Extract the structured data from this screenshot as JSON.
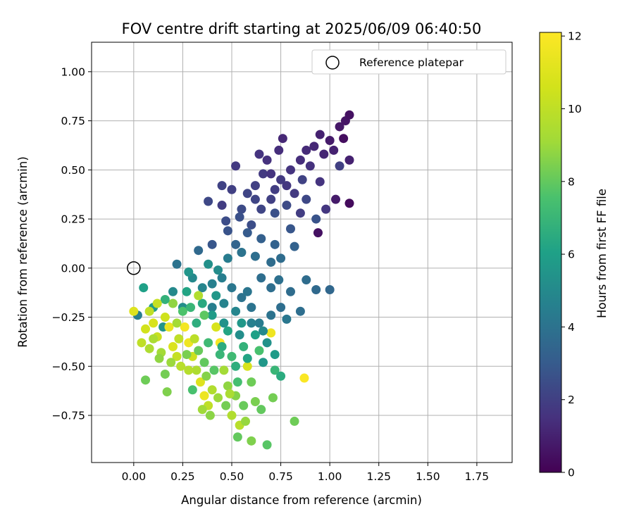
{
  "chart_data": {
    "type": "scatter",
    "title": "FOV centre drift starting at 2025/06/09 06:40:50",
    "xlabel": "Angular distance from reference (arcmin)",
    "ylabel": "Rotation from reference (arcmin)",
    "xlim": [
      -0.215,
      1.93
    ],
    "ylim": [
      -0.99,
      1.15
    ],
    "x_ticks": [
      "0.00",
      "0.25",
      "0.50",
      "0.75",
      "1.00",
      "1.25",
      "1.50",
      "1.75"
    ],
    "y_ticks": [
      "−0.75",
      "−0.50",
      "−0.25",
      "0.00",
      "0.25",
      "0.50",
      "0.75",
      "1.00"
    ],
    "x_tick_values": [
      0,
      0.25,
      0.5,
      0.75,
      1.0,
      1.25,
      1.5,
      1.75
    ],
    "y_tick_values": [
      -0.75,
      -0.5,
      -0.25,
      0,
      0.25,
      0.5,
      0.75,
      1.0
    ],
    "grid": true,
    "legend": {
      "placement": "top-right",
      "entries": [
        "Reference platepar"
      ]
    },
    "reference_point": {
      "x": 0.0,
      "y": 0.0
    },
    "colorbar": {
      "label": "Hours from first FF file",
      "colormap": "viridis",
      "range": [
        0,
        12.1
      ],
      "ticks": [
        "0",
        "2",
        "4",
        "6",
        "8",
        "10",
        "12"
      ],
      "tick_values": [
        0,
        2,
        4,
        6,
        8,
        10,
        12
      ]
    },
    "clusters": [
      {
        "x": 0.05,
        "y": -0.1,
        "t": 6.0
      },
      {
        "x": 0.1,
        "y": -0.2,
        "t": 5.8
      },
      {
        "x": 0.15,
        "y": -0.3,
        "t": 5.5
      },
      {
        "x": 0.2,
        "y": -0.12,
        "t": 5.0
      },
      {
        "x": 0.25,
        "y": -0.2,
        "t": 5.2
      },
      {
        "x": 0.3,
        "y": -0.05,
        "t": 5.0
      },
      {
        "x": 0.35,
        "y": -0.1,
        "t": 4.8
      },
      {
        "x": 0.4,
        "y": -0.2,
        "t": 4.5
      },
      {
        "x": 0.45,
        "y": -0.05,
        "t": 4.5
      },
      {
        "x": 0.5,
        "y": -0.1,
        "t": 4.2
      },
      {
        "x": 0.55,
        "y": -0.15,
        "t": 4.0
      },
      {
        "x": 0.6,
        "y": -0.2,
        "t": 4.0
      },
      {
        "x": 0.65,
        "y": -0.05,
        "t": 3.8
      },
      {
        "x": 0.7,
        "y": -0.1,
        "t": 3.8
      },
      {
        "x": 0.75,
        "y": -0.2,
        "t": 3.8
      },
      {
        "x": 0.8,
        "y": -0.12,
        "t": 3.7
      },
      {
        "x": 0.85,
        "y": -0.22,
        "t": 3.8
      },
      {
        "x": 0.88,
        "y": -0.06,
        "t": 3.7
      },
      {
        "x": 0.93,
        "y": -0.11,
        "t": 3.6
      },
      {
        "x": 1.0,
        "y": -0.11,
        "t": 3.5
      },
      {
        "x": 0.38,
        "y": 0.02,
        "t": 5.3
      },
      {
        "x": 0.43,
        "y": -0.01,
        "t": 5.1
      },
      {
        "x": 0.48,
        "y": 0.05,
        "t": 4.4
      },
      {
        "x": 0.55,
        "y": 0.08,
        "t": 4.0
      },
      {
        "x": 0.62,
        "y": 0.06,
        "t": 3.8
      },
      {
        "x": 0.7,
        "y": 0.03,
        "t": 3.7
      },
      {
        "x": 0.75,
        "y": 0.05,
        "t": 3.7
      },
      {
        "x": 0.33,
        "y": 0.09,
        "t": 3.6
      },
      {
        "x": 0.4,
        "y": 0.12,
        "t": 2.8
      },
      {
        "x": 0.52,
        "y": 0.12,
        "t": 3.4
      },
      {
        "x": 0.65,
        "y": 0.15,
        "t": 3.2
      },
      {
        "x": 0.72,
        "y": 0.12,
        "t": 3.3
      },
      {
        "x": 0.58,
        "y": 0.18,
        "t": 3.0
      },
      {
        "x": 0.82,
        "y": 0.11,
        "t": 3.3
      },
      {
        "x": 0.22,
        "y": 0.02,
        "t": 4.0
      },
      {
        "x": 0.28,
        "y": -0.02,
        "t": 5.5
      },
      {
        "x": 0.02,
        "y": -0.24,
        "t": 4.5
      },
      {
        "x": 0.0,
        "y": -0.22,
        "t": 11.0
      },
      {
        "x": 0.06,
        "y": -0.31,
        "t": 10.6
      },
      {
        "x": 0.1,
        "y": -0.28,
        "t": 10.8
      },
      {
        "x": 0.04,
        "y": -0.38,
        "t": 10.0
      },
      {
        "x": 0.08,
        "y": -0.41,
        "t": 9.5
      },
      {
        "x": 0.12,
        "y": -0.35,
        "t": 10.3
      },
      {
        "x": 0.16,
        "y": -0.25,
        "t": 10.5
      },
      {
        "x": 0.18,
        "y": -0.3,
        "t": 11.4
      },
      {
        "x": 0.2,
        "y": -0.4,
        "t": 10.9
      },
      {
        "x": 0.22,
        "y": -0.45,
        "t": 10.2
      },
      {
        "x": 0.24,
        "y": -0.5,
        "t": 9.8
      },
      {
        "x": 0.26,
        "y": -0.3,
        "t": 11.8
      },
      {
        "x": 0.28,
        "y": -0.38,
        "t": 11.6
      },
      {
        "x": 0.3,
        "y": -0.45,
        "t": 10.4
      },
      {
        "x": 0.32,
        "y": -0.52,
        "t": 9.5
      },
      {
        "x": 0.34,
        "y": -0.58,
        "t": 11.0
      },
      {
        "x": 0.36,
        "y": -0.65,
        "t": 11.5
      },
      {
        "x": 0.38,
        "y": -0.7,
        "t": 10.0
      },
      {
        "x": 0.4,
        "y": -0.62,
        "t": 9.6
      },
      {
        "x": 0.42,
        "y": -0.3,
        "t": 10.8
      },
      {
        "x": 0.44,
        "y": -0.38,
        "t": 11.9
      },
      {
        "x": 0.46,
        "y": -0.52,
        "t": 9.2
      },
      {
        "x": 0.48,
        "y": -0.6,
        "t": 8.8
      },
      {
        "x": 0.5,
        "y": -0.75,
        "t": 9.6
      },
      {
        "x": 0.52,
        "y": -0.65,
        "t": 8.6
      },
      {
        "x": 0.54,
        "y": -0.8,
        "t": 9.8
      },
      {
        "x": 0.58,
        "y": -0.5,
        "t": 10.8
      },
      {
        "x": 0.6,
        "y": -0.58,
        "t": 8.2
      },
      {
        "x": 0.62,
        "y": -0.68,
        "t": 8.4
      },
      {
        "x": 0.65,
        "y": -0.72,
        "t": 8.0
      },
      {
        "x": 0.68,
        "y": -0.9,
        "t": 7.8
      },
      {
        "x": 0.7,
        "y": -0.33,
        "t": 11.6
      },
      {
        "x": 0.72,
        "y": -0.52,
        "t": 7.0
      },
      {
        "x": 0.75,
        "y": -0.55,
        "t": 6.5
      },
      {
        "x": 0.82,
        "y": -0.78,
        "t": 8.2
      },
      {
        "x": 0.87,
        "y": -0.56,
        "t": 12.0
      },
      {
        "x": 0.06,
        "y": -0.57,
        "t": 8.2
      },
      {
        "x": 0.17,
        "y": -0.63,
        "t": 8.5
      },
      {
        "x": 0.16,
        "y": -0.54,
        "t": 8.3
      },
      {
        "x": 0.14,
        "y": -0.43,
        "t": 9.2
      },
      {
        "x": 0.28,
        "y": -0.52,
        "t": 9.7
      },
      {
        "x": 0.3,
        "y": -0.62,
        "t": 7.5
      },
      {
        "x": 0.36,
        "y": -0.48,
        "t": 8.0
      },
      {
        "x": 0.45,
        "y": -0.4,
        "t": 6.5
      },
      {
        "x": 0.5,
        "y": -0.45,
        "t": 7.2
      },
      {
        "x": 0.56,
        "y": -0.4,
        "t": 6.8
      },
      {
        "x": 0.64,
        "y": -0.42,
        "t": 7.5
      },
      {
        "x": 0.48,
        "y": -0.32,
        "t": 6.2
      },
      {
        "x": 0.55,
        "y": -0.28,
        "t": 5.6
      },
      {
        "x": 0.62,
        "y": -0.34,
        "t": 6.0
      },
      {
        "x": 0.68,
        "y": -0.38,
        "t": 5.4
      },
      {
        "x": 0.4,
        "y": -0.24,
        "t": 5.8
      },
      {
        "x": 0.35,
        "y": -0.18,
        "t": 6.4
      },
      {
        "x": 0.25,
        "y": -0.22,
        "t": 7.6
      },
      {
        "x": 0.2,
        "y": -0.18,
        "t": 8.8
      },
      {
        "x": 0.6,
        "y": 0.22,
        "t": 2.5
      },
      {
        "x": 0.65,
        "y": 0.3,
        "t": 2.2
      },
      {
        "x": 0.7,
        "y": 0.35,
        "t": 2.0
      },
      {
        "x": 0.72,
        "y": 0.4,
        "t": 1.9
      },
      {
        "x": 0.75,
        "y": 0.45,
        "t": 1.8
      },
      {
        "x": 0.78,
        "y": 0.42,
        "t": 1.7
      },
      {
        "x": 0.8,
        "y": 0.5,
        "t": 1.6
      },
      {
        "x": 0.82,
        "y": 0.38,
        "t": 1.8
      },
      {
        "x": 0.85,
        "y": 0.55,
        "t": 1.4
      },
      {
        "x": 0.88,
        "y": 0.6,
        "t": 1.3
      },
      {
        "x": 0.9,
        "y": 0.52,
        "t": 1.5
      },
      {
        "x": 0.92,
        "y": 0.62,
        "t": 1.2
      },
      {
        "x": 0.95,
        "y": 0.68,
        "t": 1.0
      },
      {
        "x": 0.97,
        "y": 0.58,
        "t": 1.1
      },
      {
        "x": 1.0,
        "y": 0.65,
        "t": 0.8
      },
      {
        "x": 1.02,
        "y": 0.6,
        "t": 1.0
      },
      {
        "x": 1.05,
        "y": 0.72,
        "t": 0.7
      },
      {
        "x": 1.08,
        "y": 0.75,
        "t": 0.6
      },
      {
        "x": 1.1,
        "y": 0.78,
        "t": 0.5
      },
      {
        "x": 1.07,
        "y": 0.66,
        "t": 0.4
      },
      {
        "x": 1.03,
        "y": 0.35,
        "t": 0.8
      },
      {
        "x": 1.1,
        "y": 0.33,
        "t": 0.3
      },
      {
        "x": 1.1,
        "y": 0.55,
        "t": 1.0
      },
      {
        "x": 1.05,
        "y": 0.52,
        "t": 2.0
      },
      {
        "x": 0.55,
        "y": 0.3,
        "t": 2.4
      },
      {
        "x": 0.58,
        "y": 0.38,
        "t": 2.2
      },
      {
        "x": 0.62,
        "y": 0.42,
        "t": 2.0
      },
      {
        "x": 0.66,
        "y": 0.48,
        "t": 1.8
      },
      {
        "x": 0.64,
        "y": 0.58,
        "t": 1.6
      },
      {
        "x": 0.68,
        "y": 0.55,
        "t": 1.5
      },
      {
        "x": 0.74,
        "y": 0.6,
        "t": 1.4
      },
      {
        "x": 0.76,
        "y": 0.66,
        "t": 1.2
      },
      {
        "x": 0.5,
        "y": 0.4,
        "t": 2.0
      },
      {
        "x": 0.45,
        "y": 0.32,
        "t": 1.9
      },
      {
        "x": 0.45,
        "y": 0.42,
        "t": 2.1
      },
      {
        "x": 0.52,
        "y": 0.52,
        "t": 1.8
      },
      {
        "x": 0.54,
        "y": 0.26,
        "t": 2.6
      },
      {
        "x": 0.38,
        "y": 0.34,
        "t": 2.3
      },
      {
        "x": 0.47,
        "y": 0.24,
        "t": 2.5
      },
      {
        "x": 0.48,
        "y": 0.19,
        "t": 2.7
      },
      {
        "x": 0.86,
        "y": 0.45,
        "t": 2.1
      },
      {
        "x": 0.88,
        "y": 0.35,
        "t": 2.3
      },
      {
        "x": 0.85,
        "y": 0.28,
        "t": 1.9
      },
      {
        "x": 0.94,
        "y": 0.18,
        "t": 0.5
      },
      {
        "x": 0.93,
        "y": 0.25,
        "t": 2.7
      },
      {
        "x": 0.8,
        "y": 0.2,
        "t": 2.8
      },
      {
        "x": 0.98,
        "y": 0.3,
        "t": 1.7
      },
      {
        "x": 0.95,
        "y": 0.44,
        "t": 1.6
      },
      {
        "x": 0.72,
        "y": 0.28,
        "t": 2.6
      },
      {
        "x": 0.62,
        "y": 0.35,
        "t": 2.2
      },
      {
        "x": 0.78,
        "y": 0.32,
        "t": 2.4
      },
      {
        "x": 0.7,
        "y": 0.48,
        "t": 1.6
      },
      {
        "x": 0.4,
        "y": -0.08,
        "t": 4.6
      },
      {
        "x": 0.46,
        "y": -0.18,
        "t": 4.7
      },
      {
        "x": 0.52,
        "y": -0.22,
        "t": 4.8
      },
      {
        "x": 0.58,
        "y": -0.12,
        "t": 4.1
      },
      {
        "x": 0.64,
        "y": -0.28,
        "t": 4.4
      },
      {
        "x": 0.7,
        "y": -0.24,
        "t": 4.0
      },
      {
        "x": 0.66,
        "y": -0.32,
        "t": 5.0
      },
      {
        "x": 0.6,
        "y": -0.28,
        "t": 4.6
      },
      {
        "x": 0.54,
        "y": -0.34,
        "t": 5.2
      },
      {
        "x": 0.46,
        "y": -0.28,
        "t": 5.4
      },
      {
        "x": 0.42,
        "y": -0.14,
        "t": 5.6
      },
      {
        "x": 0.32,
        "y": -0.28,
        "t": 6.6
      },
      {
        "x": 0.44,
        "y": -0.44,
        "t": 7.0
      },
      {
        "x": 0.38,
        "y": -0.38,
        "t": 7.2
      },
      {
        "x": 0.52,
        "y": -0.5,
        "t": 6.6
      },
      {
        "x": 0.58,
        "y": -0.46,
        "t": 6.2
      },
      {
        "x": 0.66,
        "y": -0.48,
        "t": 5.6
      },
      {
        "x": 0.72,
        "y": -0.44,
        "t": 5.8
      },
      {
        "x": 0.78,
        "y": -0.26,
        "t": 4.2
      },
      {
        "x": 0.74,
        "y": -0.06,
        "t": 3.9
      },
      {
        "x": 0.1,
        "y": -0.36,
        "t": 9.4
      },
      {
        "x": 0.13,
        "y": -0.46,
        "t": 8.8
      },
      {
        "x": 0.19,
        "y": -0.48,
        "t": 9.0
      },
      {
        "x": 0.23,
        "y": -0.36,
        "t": 10.0
      },
      {
        "x": 0.27,
        "y": -0.44,
        "t": 8.4
      },
      {
        "x": 0.31,
        "y": -0.36,
        "t": 9.9
      },
      {
        "x": 0.33,
        "y": -0.42,
        "t": 8.1
      },
      {
        "x": 0.37,
        "y": -0.55,
        "t": 8.6
      },
      {
        "x": 0.41,
        "y": -0.52,
        "t": 7.8
      },
      {
        "x": 0.43,
        "y": -0.66,
        "t": 9.0
      },
      {
        "x": 0.47,
        "y": -0.7,
        "t": 8.3
      },
      {
        "x": 0.53,
        "y": -0.58,
        "t": 7.4
      },
      {
        "x": 0.56,
        "y": -0.7,
        "t": 8.1
      },
      {
        "x": 0.49,
        "y": -0.64,
        "t": 9.4
      },
      {
        "x": 0.35,
        "y": -0.72,
        "t": 9.1
      },
      {
        "x": 0.39,
        "y": -0.75,
        "t": 8.7
      },
      {
        "x": 0.6,
        "y": -0.88,
        "t": 8.5
      },
      {
        "x": 0.53,
        "y": -0.86,
        "t": 8.0
      },
      {
        "x": 0.71,
        "y": -0.66,
        "t": 8.3
      },
      {
        "x": 0.57,
        "y": -0.78,
        "t": 8.9
      },
      {
        "x": 0.16,
        "y": -0.16,
        "t": 6.8
      },
      {
        "x": 0.12,
        "y": -0.18,
        "t": 10.2
      },
      {
        "x": 0.08,
        "y": -0.22,
        "t": 10.0
      },
      {
        "x": 0.22,
        "y": -0.28,
        "t": 9.2
      },
      {
        "x": 0.27,
        "y": -0.12,
        "t": 6.2
      },
      {
        "x": 0.33,
        "y": -0.14,
        "t": 9.6
      },
      {
        "x": 0.36,
        "y": -0.24,
        "t": 7.9
      },
      {
        "x": 0.29,
        "y": -0.2,
        "t": 7.0
      }
    ]
  }
}
